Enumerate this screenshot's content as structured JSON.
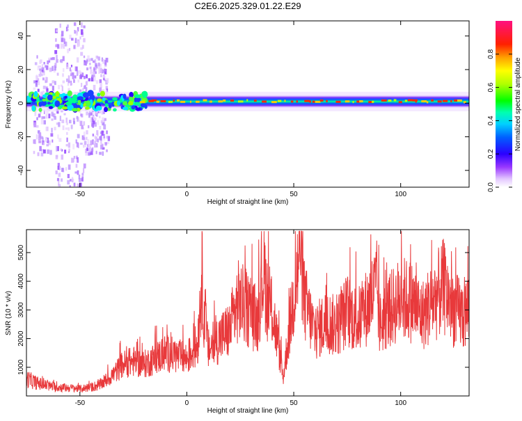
{
  "title": "C2E6.2025.329.01.22.E29",
  "colorbar": {
    "label": "Normalized spectral amplitude",
    "ticks": [
      "0.0",
      "0.2",
      "0.4",
      "0.6",
      "0.8"
    ],
    "tick_values": [
      0.0,
      0.2,
      0.4,
      0.6,
      0.8
    ],
    "range": [
      0,
      1
    ]
  },
  "chart_data": [
    {
      "type": "heatmap",
      "xlabel": "Height of straight line (km)",
      "ylabel": "Frequency (Hz)",
      "xlim": [
        -75,
        132
      ],
      "ylim": [
        -50,
        49
      ],
      "x_ticks": [
        -50,
        0,
        50,
        100
      ],
      "y_ticks": [
        -40,
        -20,
        0,
        20,
        40
      ],
      "band": {
        "center_frequency_hz": 1,
        "note_values": "strong narrow band near 0 Hz across heights -75 to 132 km; broadband scatter between -70 and -40 km"
      }
    },
    {
      "type": "line",
      "xlabel": "Height of straight line (km)",
      "ylabel": "SNR (10 * v/v)",
      "xlim": [
        -75,
        132
      ],
      "ylim": [
        0,
        5800
      ],
      "x_ticks": [
        -50,
        0,
        50,
        100
      ],
      "y_ticks": [
        1000,
        2000,
        3000,
        4000,
        5000
      ],
      "color": "#e8393b",
      "series": [
        {
          "x": [
            -75,
            -70,
            -65,
            -60,
            -55,
            -50,
            -45,
            -40,
            -35,
            -30,
            -25,
            -20,
            -15,
            -10,
            -5,
            0,
            5,
            7,
            8,
            10,
            15,
            20,
            24,
            26,
            30,
            33,
            35,
            36,
            38,
            40,
            44,
            45,
            47,
            50,
            52,
            53,
            55,
            60,
            65,
            70,
            75,
            80,
            85,
            89,
            90,
            95,
            100,
            105,
            110,
            115,
            120,
            125,
            130,
            132
          ],
          "values": [
            600,
            450,
            350,
            300,
            280,
            250,
            300,
            400,
            700,
            1100,
            1200,
            1100,
            1300,
            1500,
            1400,
            1300,
            1800,
            4200,
            3000,
            1600,
            2000,
            2300,
            3300,
            3200,
            2900,
            2600,
            4000,
            4400,
            3200,
            3000,
            1200,
            600,
            1800,
            3500,
            4500,
            5600,
            3300,
            2200,
            2600,
            2400,
            3000,
            2600,
            3200,
            3800,
            2500,
            3000,
            3400,
            3300,
            2800,
            3300,
            3800,
            3000,
            2800,
            3200
          ]
        }
      ]
    }
  ]
}
